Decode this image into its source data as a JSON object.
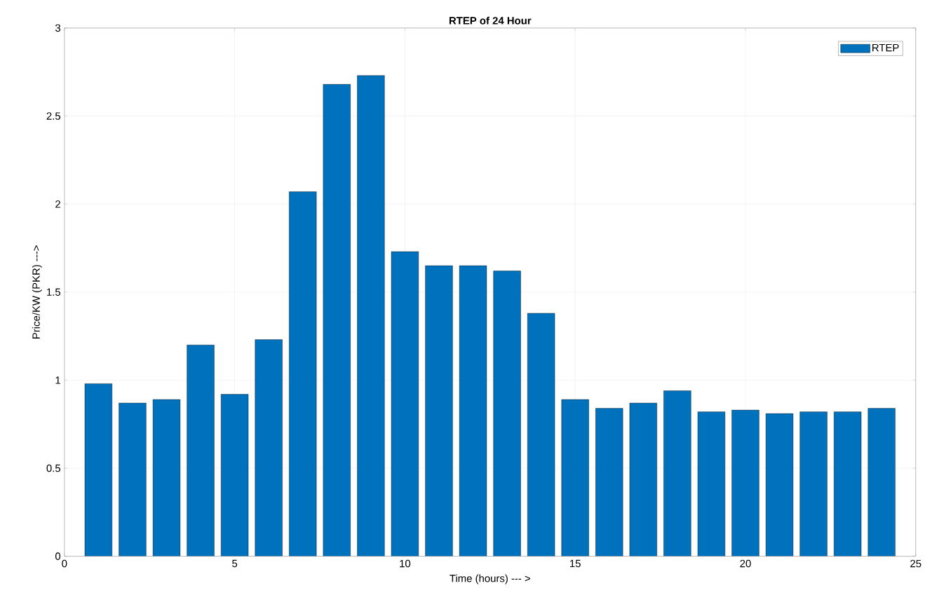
{
  "chart_data": {
    "type": "bar",
    "title": "RTEP of 24 Hour",
    "xlabel": "Time (hours) --- >",
    "ylabel": "Price/KW (PKR) --->",
    "x": [
      1,
      2,
      3,
      4,
      5,
      6,
      7,
      8,
      9,
      10,
      11,
      12,
      13,
      14,
      15,
      16,
      17,
      18,
      19,
      20,
      21,
      22,
      23,
      24
    ],
    "series": [
      {
        "name": "RTEP",
        "color": "#0072bd",
        "values": [
          0.98,
          0.87,
          0.89,
          1.2,
          0.92,
          1.23,
          2.07,
          2.68,
          2.73,
          1.73,
          1.65,
          1.65,
          1.62,
          1.38,
          0.89,
          0.84,
          0.87,
          0.94,
          0.82,
          0.83,
          0.81,
          0.82,
          0.82,
          0.84
        ]
      }
    ],
    "xlim": [
      0,
      25
    ],
    "ylim": [
      0,
      3
    ],
    "xticks": [
      0,
      5,
      10,
      15,
      20,
      25
    ],
    "yticks": [
      0,
      0.5,
      1,
      1.5,
      2,
      2.5,
      3
    ],
    "grid": true,
    "legend": "top right"
  }
}
